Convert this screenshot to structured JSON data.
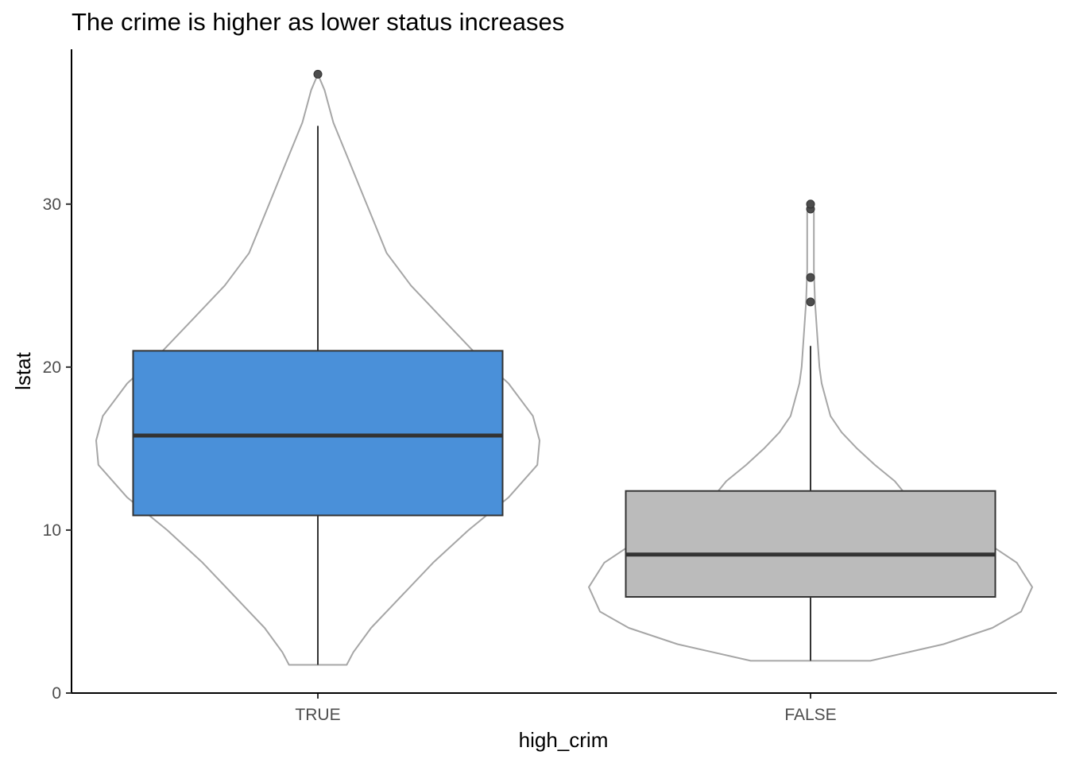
{
  "chart_data": {
    "type": "boxplot",
    "title": "The crime is higher as lower status increases",
    "xlabel": "high_crim",
    "ylabel": "lstat",
    "categories": [
      "TRUE",
      "FALSE"
    ],
    "ylim": [
      0,
      39.5
    ],
    "yticks": [
      0,
      10,
      20,
      30
    ],
    "grid": false,
    "legend": "none",
    "boxes": [
      {
        "category": "TRUE",
        "color": "#4A90D9",
        "whisker_low": 1.73,
        "q1": 10.9,
        "median": 15.8,
        "q3": 21.0,
        "whisker_high": 34.8,
        "outliers": [
          37.97
        ],
        "violin": [
          [
            1.73,
            0.13
          ],
          [
            2.5,
            0.16
          ],
          [
            4.0,
            0.24
          ],
          [
            6.0,
            0.38
          ],
          [
            8.0,
            0.52
          ],
          [
            10.0,
            0.68
          ],
          [
            12.0,
            0.86
          ],
          [
            14.0,
            0.99
          ],
          [
            15.5,
            1.0
          ],
          [
            17.0,
            0.97
          ],
          [
            19.0,
            0.86
          ],
          [
            21.0,
            0.7
          ],
          [
            23.0,
            0.56
          ],
          [
            25.0,
            0.42
          ],
          [
            27.0,
            0.31
          ],
          [
            29.0,
            0.25
          ],
          [
            31.0,
            0.19
          ],
          [
            33.0,
            0.13
          ],
          [
            35.0,
            0.07
          ],
          [
            37.0,
            0.03
          ],
          [
            37.97,
            0.0
          ]
        ]
      },
      {
        "category": "FALSE",
        "color": "#BBBBBB",
        "whisker_low": 1.98,
        "q1": 5.9,
        "median": 8.5,
        "q3": 12.4,
        "whisker_high": 21.3,
        "outliers": [
          24.0,
          25.5,
          29.7,
          30.0
        ],
        "violin": [
          [
            1.98,
            0.27
          ],
          [
            3.0,
            0.6
          ],
          [
            4.0,
            0.82
          ],
          [
            5.0,
            0.95
          ],
          [
            6.5,
            1.0
          ],
          [
            8.0,
            0.93
          ],
          [
            9.0,
            0.82
          ],
          [
            10.0,
            0.64
          ],
          [
            11.0,
            0.5
          ],
          [
            12.0,
            0.44
          ],
          [
            13.0,
            0.38
          ],
          [
            14.0,
            0.29
          ],
          [
            15.0,
            0.21
          ],
          [
            16.0,
            0.14
          ],
          [
            17.0,
            0.09
          ],
          [
            18.0,
            0.07
          ],
          [
            19.0,
            0.05
          ],
          [
            20.0,
            0.04
          ],
          [
            22.0,
            0.03
          ],
          [
            24.0,
            0.02
          ],
          [
            26.0,
            0.015
          ],
          [
            28.0,
            0.015
          ],
          [
            29.5,
            0.015
          ],
          [
            30.0,
            0.0
          ]
        ]
      }
    ]
  }
}
